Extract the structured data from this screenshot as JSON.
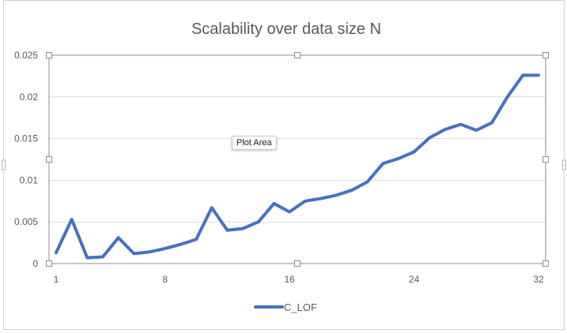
{
  "colors": {
    "series": "#4472C4",
    "grid": "#d9d9d9",
    "axis_text": "#595959",
    "title_text": "#595959",
    "frame": "#bfbfbf"
  },
  "tooltip": {
    "label": "Plot Area"
  },
  "chart_data": {
    "type": "line",
    "title": "Scalability over data size N",
    "xlabel": "",
    "ylabel": "",
    "x": [
      1,
      2,
      3,
      4,
      5,
      6,
      7,
      8,
      9,
      10,
      11,
      12,
      13,
      14,
      15,
      16,
      17,
      18,
      19,
      20,
      21,
      22,
      23,
      24,
      25,
      26,
      27,
      28,
      29,
      30,
      31,
      32
    ],
    "x_tick_labels": [
      "1",
      "8",
      "16",
      "24",
      "32"
    ],
    "x_tick_values": [
      1,
      8,
      16,
      24,
      32
    ],
    "y_tick_labels": [
      "0",
      "0.005",
      "0.01",
      "0.015",
      "0.02",
      "0.025"
    ],
    "y_tick_values": [
      0,
      0.005,
      0.01,
      0.015,
      0.02,
      0.025
    ],
    "ylim": [
      0,
      0.025
    ],
    "grid": true,
    "legend_position": "bottom",
    "series": [
      {
        "name": "C_LOF",
        "values": [
          0.0013,
          0.0053,
          0.0007,
          0.0008,
          0.0031,
          0.0012,
          0.0014,
          0.0018,
          0.0023,
          0.0029,
          0.0067,
          0.004,
          0.0042,
          0.005,
          0.0072,
          0.0062,
          0.0075,
          0.0078,
          0.0082,
          0.0088,
          0.0098,
          0.012,
          0.0126,
          0.0134,
          0.0151,
          0.0161,
          0.0167,
          0.016,
          0.0169,
          0.02,
          0.0226,
          0.0226
        ]
      }
    ]
  }
}
